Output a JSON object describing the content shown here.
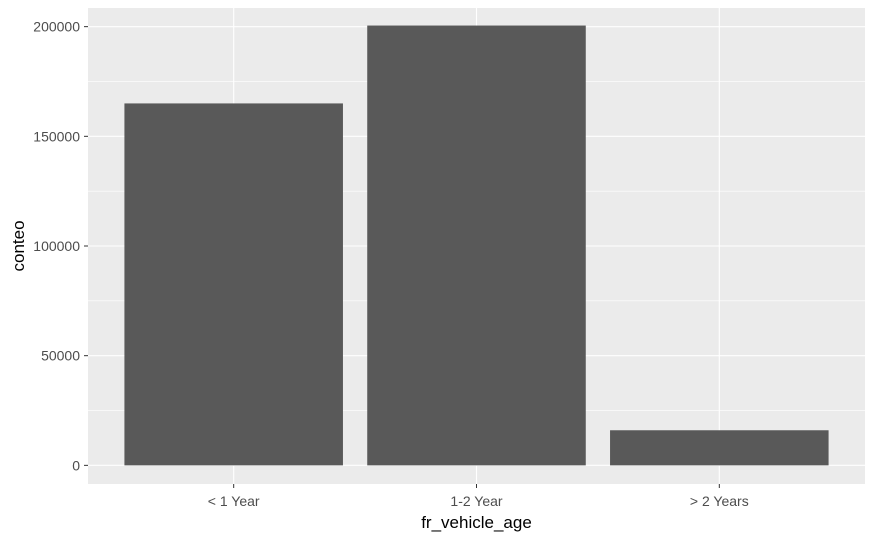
{
  "chart_data": {
    "type": "bar",
    "title": "",
    "xlabel": "fr_vehicle_age",
    "ylabel": "conteo",
    "categories": [
      "< 1 Year",
      "1-2 Year",
      "> 2 Years"
    ],
    "values": [
      165000,
      200500,
      16000
    ],
    "ylim": [
      -8500,
      208500
    ],
    "yticks": [
      0,
      50000,
      100000,
      150000,
      200000
    ],
    "ytick_labels": [
      "0",
      "50000",
      "100000",
      "150000",
      "200000"
    ],
    "grid": true,
    "legend": "none",
    "colors": {
      "bar": "#595959",
      "panel_background": "#ebebeb",
      "grid_major": "#ffffff",
      "tick_text": "#4d4d4d",
      "axis_title_text": "#000000"
    }
  }
}
